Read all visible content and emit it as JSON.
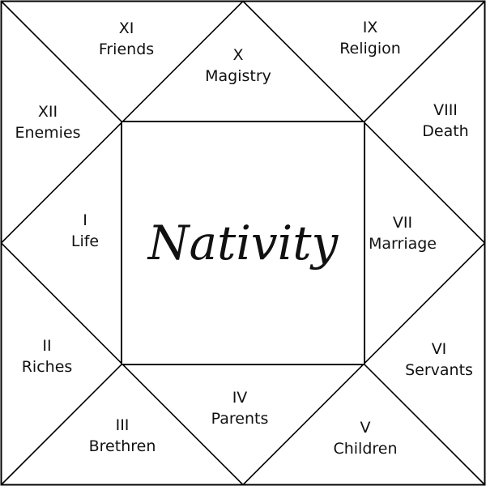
{
  "title": "Nativity",
  "houses": [
    {
      "numeral": "I",
      "label": "Life"
    },
    {
      "numeral": "II",
      "label": "Riches"
    },
    {
      "numeral": "III",
      "label": "Brethren"
    },
    {
      "numeral": "IV",
      "label": "Parents"
    },
    {
      "numeral": "V",
      "label": "Children"
    },
    {
      "numeral": "VI",
      "label": "Servants"
    },
    {
      "numeral": "VII",
      "label": "Marriage"
    },
    {
      "numeral": "VIII",
      "label": "Death"
    },
    {
      "numeral": "IX",
      "label": "Religion"
    },
    {
      "numeral": "X",
      "label": "Magistry"
    },
    {
      "numeral": "XI",
      "label": "Friends"
    },
    {
      "numeral": "XII",
      "label": "Enemies"
    }
  ]
}
